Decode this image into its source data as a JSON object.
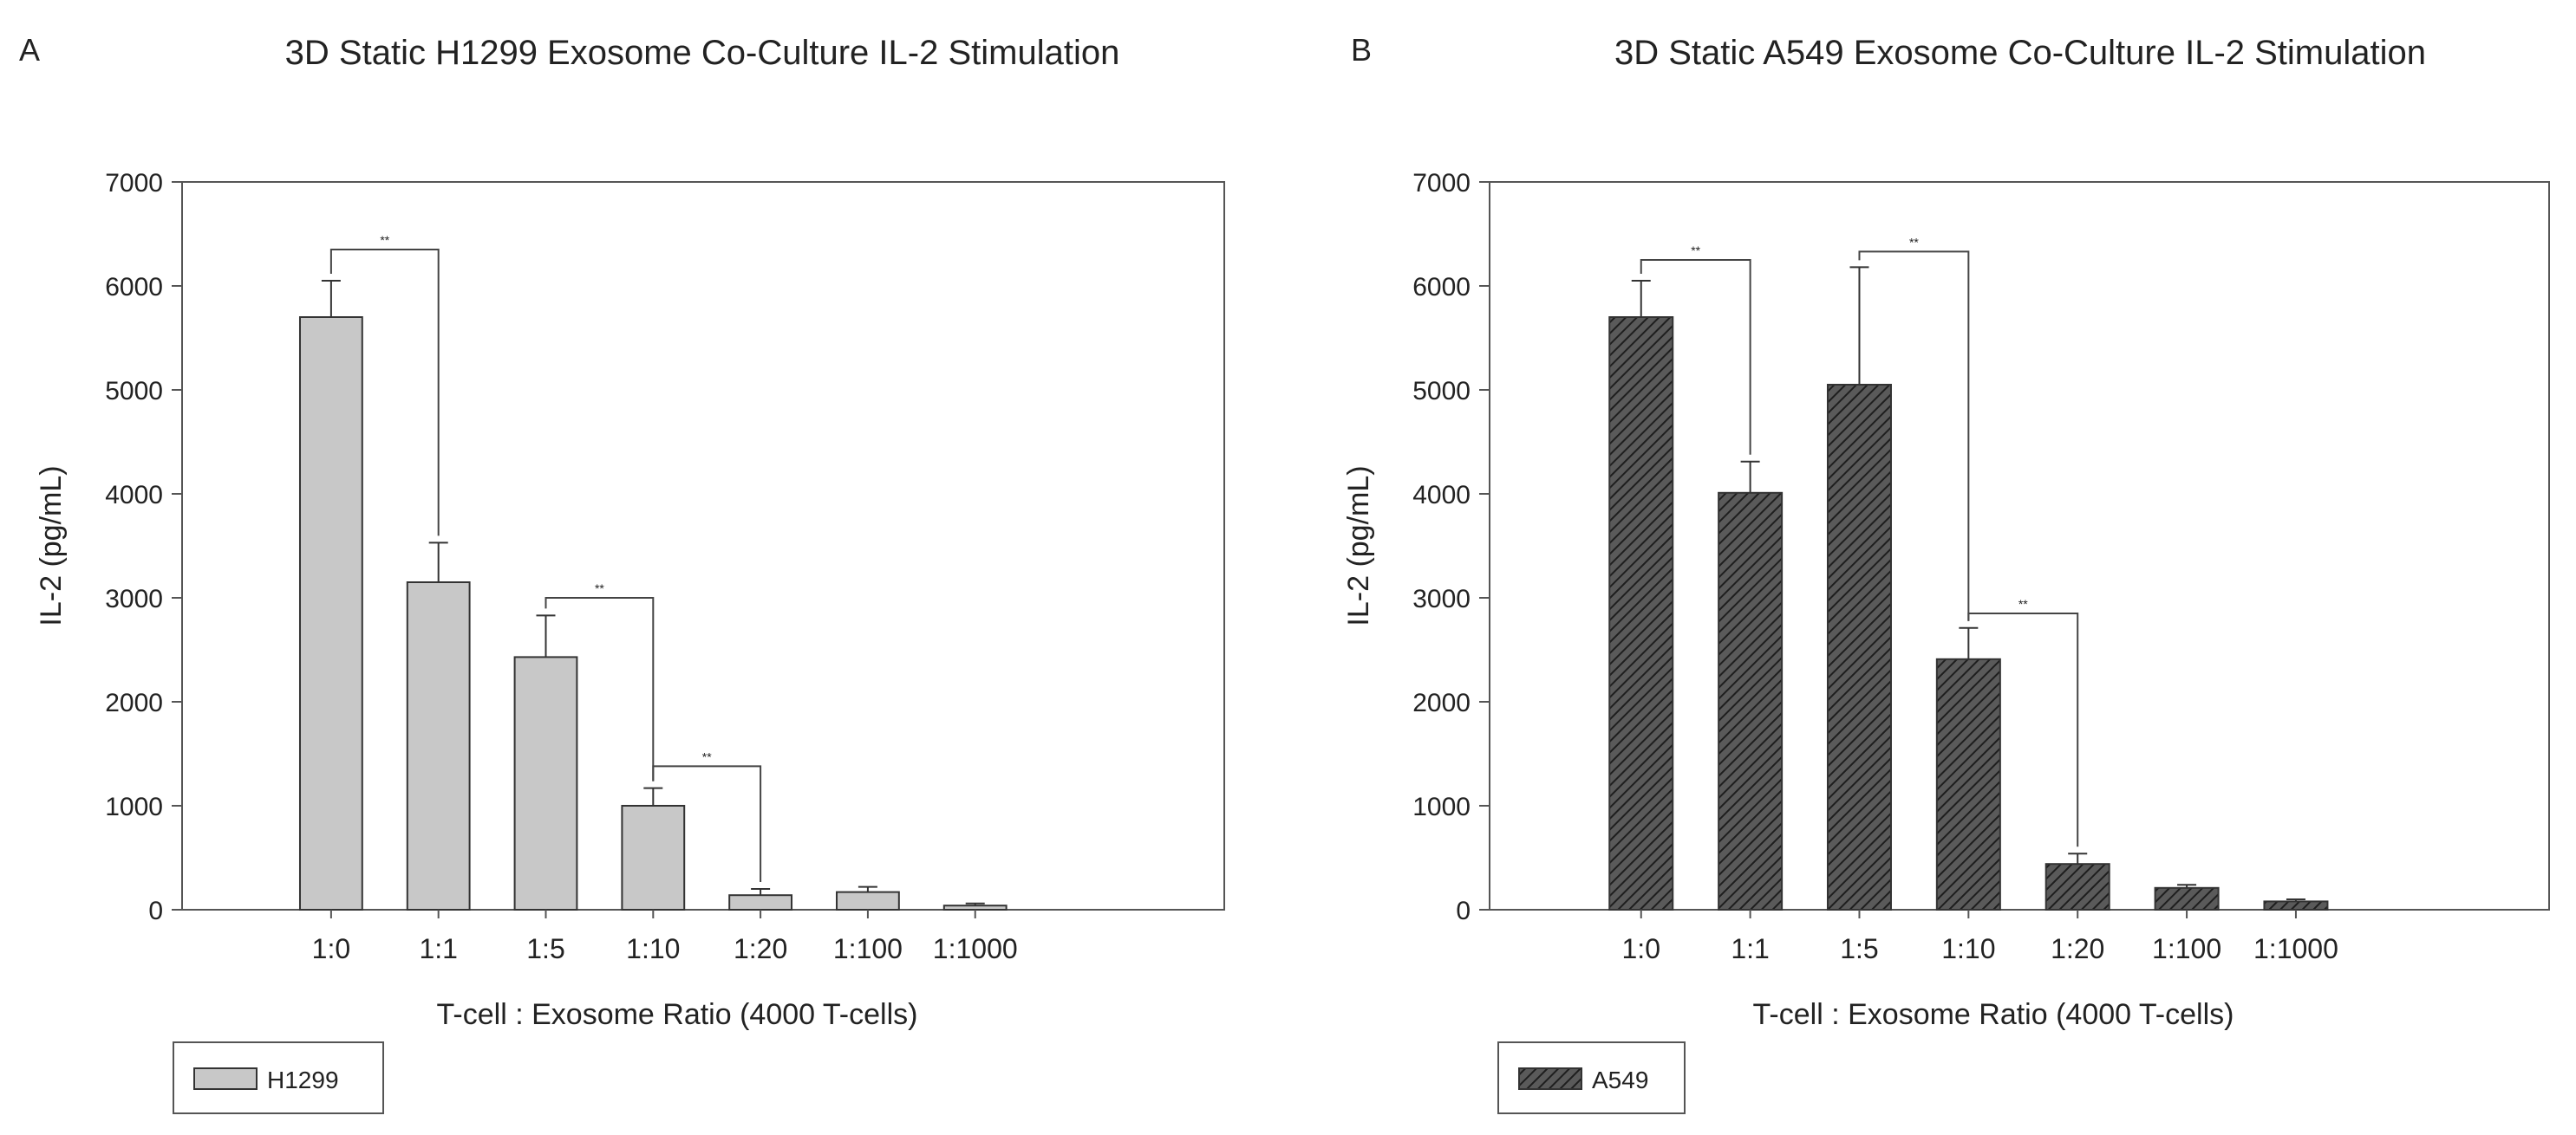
{
  "chart_data": [
    {
      "panel_label": "A",
      "type": "bar",
      "title": "3D Static H1299 Exosome Co-Culture IL-2 Stimulation",
      "xlabel": "T-cell : Exosome Ratio (4000 T-cells)",
      "ylabel": "IL-2 (pg/mL)",
      "ylim": [
        0,
        7000
      ],
      "yticks": [
        0,
        1000,
        2000,
        3000,
        4000,
        5000,
        6000,
        7000
      ],
      "categories": [
        "1:0",
        "1:1",
        "1:5",
        "1:10",
        "1:20",
        "1:100",
        "1:1000"
      ],
      "series": [
        {
          "name": "H1299",
          "fill": "#c8c8c8",
          "pattern": "solid",
          "values": [
            5700,
            3150,
            2430,
            1000,
            140,
            170,
            40
          ],
          "errors": [
            350,
            380,
            400,
            170,
            60,
            50,
            20
          ]
        }
      ],
      "significance": [
        {
          "from": "1:0",
          "to": "1:1",
          "bracket_value": 6350,
          "label": "**"
        },
        {
          "from": "1:5",
          "to": "1:10",
          "bracket_value": 3000,
          "label": "**"
        },
        {
          "from": "1:10",
          "to": "1:20",
          "bracket_value": 1380,
          "label": "**"
        }
      ],
      "legend_position": "bottom-left"
    },
    {
      "panel_label": "B",
      "type": "bar",
      "title": "3D Static A549 Exosome Co-Culture IL-2 Stimulation",
      "xlabel": "T-cell : Exosome Ratio (4000 T-cells)",
      "ylabel": "IL-2 (pg/mL)",
      "ylim": [
        0,
        7000
      ],
      "yticks": [
        0,
        1000,
        2000,
        3000,
        4000,
        5000,
        6000,
        7000
      ],
      "categories": [
        "1:0",
        "1:1",
        "1:5",
        "1:10",
        "1:20",
        "1:100",
        "1:1000"
      ],
      "series": [
        {
          "name": "A549",
          "fill": "#444444",
          "pattern": "hatched",
          "values": [
            5700,
            4010,
            5050,
            2410,
            440,
            210,
            80
          ],
          "errors": [
            350,
            300,
            1130,
            300,
            100,
            30,
            20
          ]
        }
      ],
      "significance": [
        {
          "from": "1:0",
          "to": "1:1",
          "bracket_value": 6250,
          "label": "**"
        },
        {
          "from": "1:5",
          "to": "1:10",
          "bracket_value": 6330,
          "label": "**"
        },
        {
          "from": "1:10",
          "to": "1:20",
          "bracket_value": 2850,
          "label": "**"
        }
      ],
      "legend_position": "bottom-left"
    }
  ]
}
